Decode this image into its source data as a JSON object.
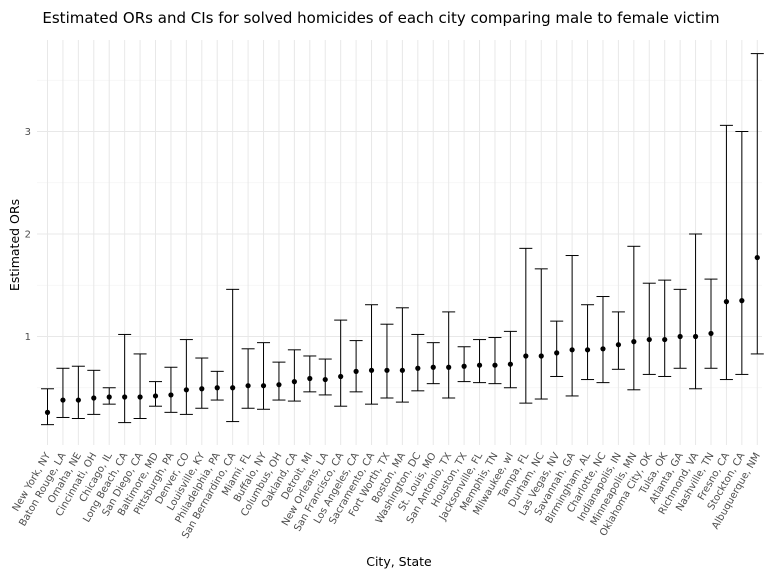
{
  "chart_data": {
    "type": "scatter",
    "title": "Estimated ORs and CIs for solved homicides of each city comparing male to female victim",
    "xlabel": "City, State",
    "ylabel": "Estimated ORs",
    "ylim": [
      0.1,
      3.85
    ],
    "yticks": [
      1,
      2,
      3
    ],
    "grid": true,
    "categories": [
      "New York, NY",
      "Baton Rouge, LA",
      "Omaha, NE",
      "Cincinnati, OH",
      "Chicago, IL",
      "Long Beach, CA",
      "San Diego, CA",
      "Baltimore, MD",
      "Pittsburgh, PA",
      "Denver, CO",
      "Louisville, KY",
      "Philadelphia, PA",
      "San Bernardino, CA",
      "Miami, FL",
      "Buffalo, NY",
      "Columbus, OH",
      "Oakland, CA",
      "Detroit, MI",
      "New Orleans, LA",
      "San Francisco, CA",
      "Los Angeles, CA",
      "Sacramento, CA",
      "Fort Worth, TX",
      "Boston, MA",
      "Washington, DC",
      "St. Louis, MO",
      "San Antonio, TX",
      "Houston, TX",
      "Jacksonville, FL",
      "Memphis, TN",
      "Milwaukee, wI",
      "Tampa, FL",
      "Durham, NC",
      "Las Vegas, NV",
      "Savannah, GA",
      "Birmingham, AL",
      "Charlotte, NC",
      "Indianapolis, IN",
      "Minneapolis, MN",
      "Oklahoma City, OK",
      "Tulsa, OK",
      "Atlanta, GA",
      "Richmond, VA",
      "Nashville, TN",
      "Fresno, CA",
      "Stockton, CA",
      "Albuquerque, NM"
    ],
    "series": [
      {
        "estimate": [
          0.26,
          0.38,
          0.38,
          0.4,
          0.41,
          0.41,
          0.41,
          0.42,
          0.43,
          0.48,
          0.49,
          0.5,
          0.5,
          0.52,
          0.52,
          0.53,
          0.56,
          0.59,
          0.58,
          0.61,
          0.66,
          0.67,
          0.67,
          0.67,
          0.69,
          0.7,
          0.7,
          0.71,
          0.72,
          0.72,
          0.73,
          0.81,
          0.81,
          0.84,
          0.87,
          0.87,
          0.88,
          0.92,
          0.95,
          0.97,
          0.97,
          1.0,
          1.0,
          1.03,
          1.34,
          1.35,
          1.77
        ],
        "ci_low": [
          0.14,
          0.21,
          0.2,
          0.24,
          0.34,
          0.16,
          0.2,
          0.32,
          0.26,
          0.24,
          0.3,
          0.38,
          0.17,
          0.3,
          0.29,
          0.38,
          0.37,
          0.46,
          0.43,
          0.32,
          0.46,
          0.34,
          0.4,
          0.36,
          0.47,
          0.54,
          0.4,
          0.56,
          0.55,
          0.54,
          0.5,
          0.35,
          0.39,
          0.61,
          0.42,
          0.58,
          0.55,
          0.68,
          0.48,
          0.63,
          0.61,
          0.69,
          0.49,
          0.69,
          0.58,
          0.63,
          0.83
        ],
        "ci_high": [
          0.49,
          0.69,
          0.71,
          0.67,
          0.5,
          1.02,
          0.83,
          0.56,
          0.7,
          0.97,
          0.79,
          0.66,
          1.46,
          0.88,
          0.94,
          0.75,
          0.87,
          0.81,
          0.78,
          1.16,
          0.96,
          1.31,
          1.12,
          1.28,
          1.02,
          0.94,
          1.24,
          0.9,
          0.97,
          0.99,
          1.05,
          1.86,
          1.66,
          1.15,
          1.79,
          1.31,
          1.39,
          1.24,
          1.88,
          1.52,
          1.55,
          1.46,
          2.0,
          1.56,
          3.06,
          3.0,
          3.76
        ]
      }
    ]
  }
}
